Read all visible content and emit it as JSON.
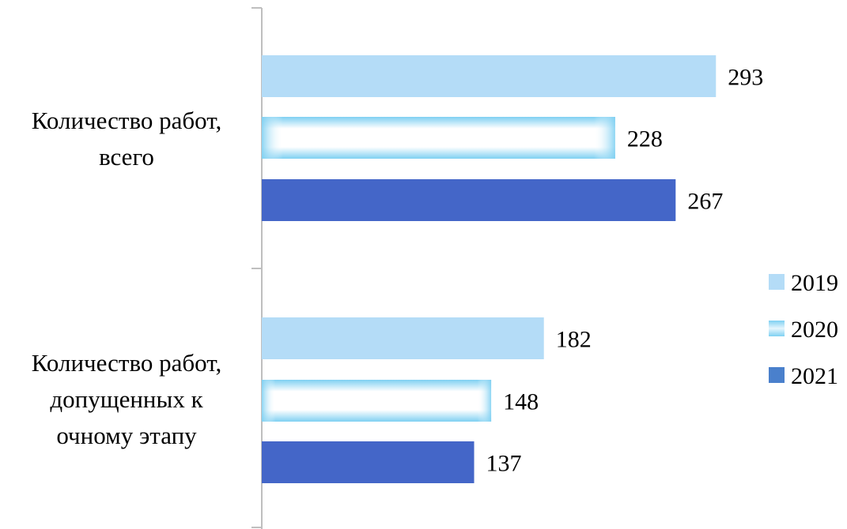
{
  "chart_data": {
    "type": "bar",
    "orientation": "horizontal",
    "title": "",
    "xlabel": "",
    "ylabel": "",
    "categories": [
      [
        "Количество работ,",
        "всего"
      ],
      [
        "Количество работ,",
        "допущенных к",
        "очному этапу"
      ]
    ],
    "series": [
      {
        "name": "2019",
        "values": [
          293,
          182
        ],
        "color": "#b4dcf7"
      },
      {
        "name": "2020",
        "values": [
          228,
          148
        ],
        "color": "#ffffff",
        "edge_color": "#7fd0f2"
      },
      {
        "name": "2021",
        "values": [
          267,
          137
        ],
        "color": "#4466c8"
      }
    ],
    "xlim": [
      0,
      300
    ],
    "grid": false,
    "show_data_labels": true,
    "legend_position": "right"
  }
}
